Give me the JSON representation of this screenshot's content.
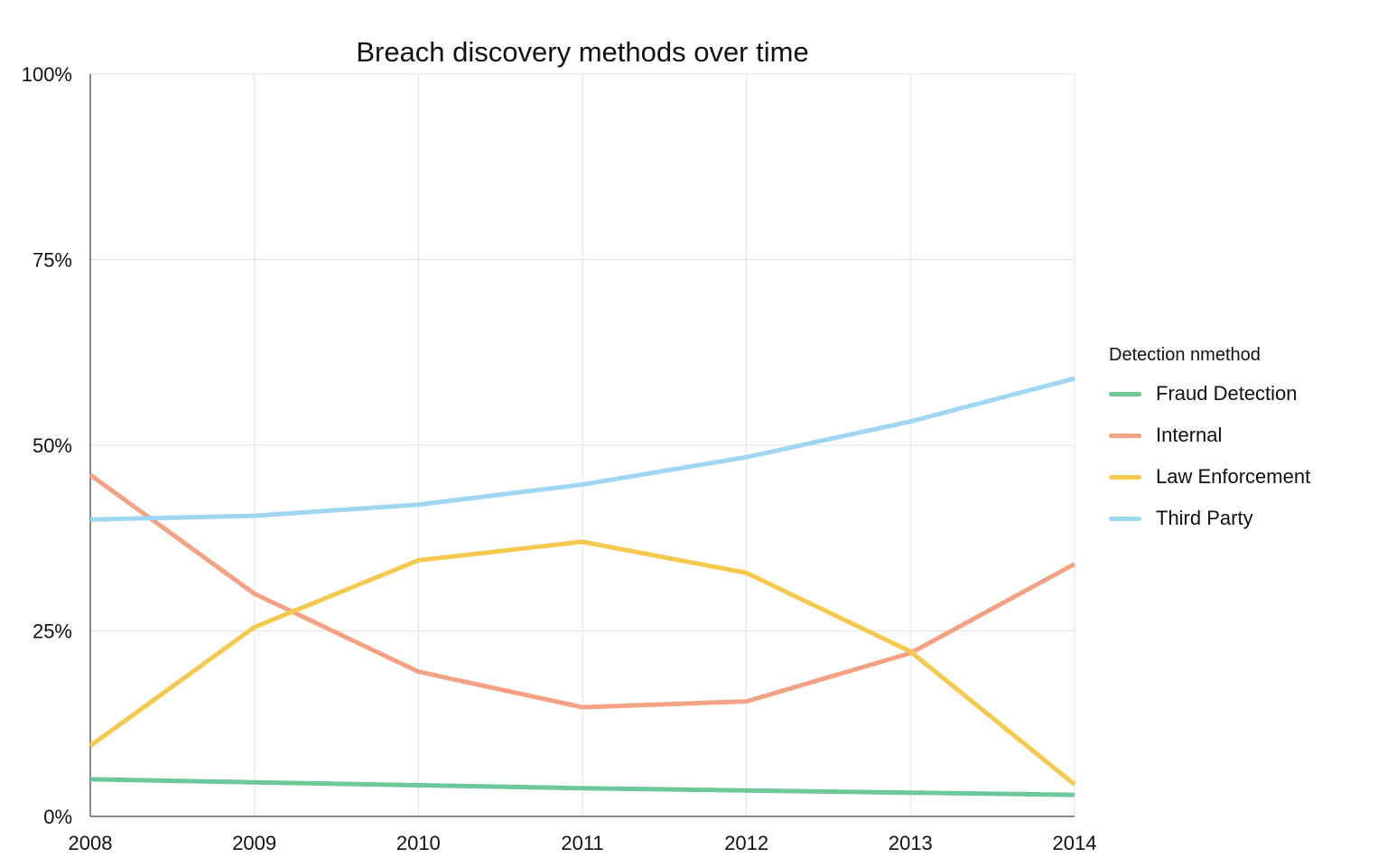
{
  "chart_data": {
    "type": "line",
    "title": "Breach discovery methods over time",
    "xlabel": "",
    "ylabel": "",
    "x": [
      "2008",
      "2009",
      "2010",
      "2011",
      "2012",
      "2013",
      "2014"
    ],
    "ylim": [
      0,
      100
    ],
    "y_ticks": [
      0,
      25,
      50,
      75,
      100
    ],
    "y_tick_labels": [
      "0%",
      "25%",
      "50%",
      "75%",
      "100%"
    ],
    "grid": true,
    "legend": {
      "title": "Detection nmethod",
      "position": "right"
    },
    "series": [
      {
        "name": "Fraud Detection",
        "color": "#6cc799",
        "values": [
          5.0,
          4.6,
          4.2,
          3.8,
          3.5,
          3.2,
          2.9
        ]
      },
      {
        "name": "Internal",
        "color": "#f4a283",
        "values": [
          46.0,
          30.0,
          19.5,
          14.7,
          15.5,
          22.0,
          34.0
        ]
      },
      {
        "name": "Law Enforcement",
        "color": "#f5c94e",
        "values": [
          9.5,
          25.5,
          34.5,
          37.0,
          32.8,
          22.2,
          4.3
        ]
      },
      {
        "name": "Third Party",
        "color": "#9fd6f2",
        "values": [
          40.0,
          40.5,
          42.0,
          44.7,
          48.4,
          53.2,
          59.0
        ]
      }
    ]
  }
}
